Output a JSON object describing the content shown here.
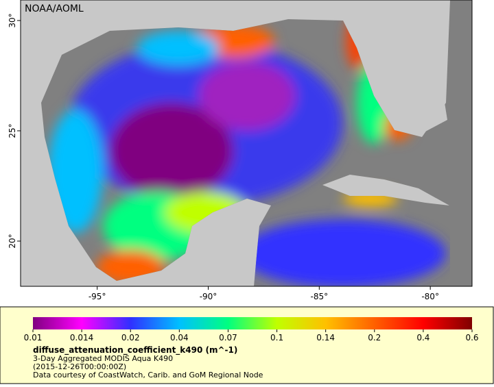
{
  "map": {
    "credit": "NOAA/AOML",
    "xlim": [
      -98.45,
      -78.12
    ],
    "ylim": [
      17.95,
      30.93
    ],
    "xticks": [
      {
        "value": -95,
        "label": "-95°"
      },
      {
        "value": -90,
        "label": "-90°"
      },
      {
        "value": -85,
        "label": "-85°"
      },
      {
        "value": -80,
        "label": "-80°"
      }
    ],
    "yticks": [
      {
        "value": 20,
        "label": "20°"
      },
      {
        "value": 25,
        "label": "25°"
      },
      {
        "value": 30,
        "label": "30°"
      }
    ]
  },
  "legend": {
    "colorbar": {
      "ticks": [
        0.01,
        0.014,
        0.02,
        0.04,
        0.07,
        0.1,
        0.14,
        0.2,
        0.4,
        0.6
      ],
      "colors": [
        "#800080",
        "#ff00ff",
        "#3030ff",
        "#00c0ff",
        "#00ff80",
        "#c0ff00",
        "#ffc000",
        "#ff6000",
        "#ff0000",
        "#800000"
      ]
    },
    "title": "diffuse_attenuation_coefficient_k490 (m^-1)",
    "lines": [
      "3-Day Aggregated MODIS Aqua K490",
      "(2015-12-26T00:00:00Z)",
      "Data courtesy of CoastWatch, Carib. and GoM Regional Node"
    ]
  }
}
